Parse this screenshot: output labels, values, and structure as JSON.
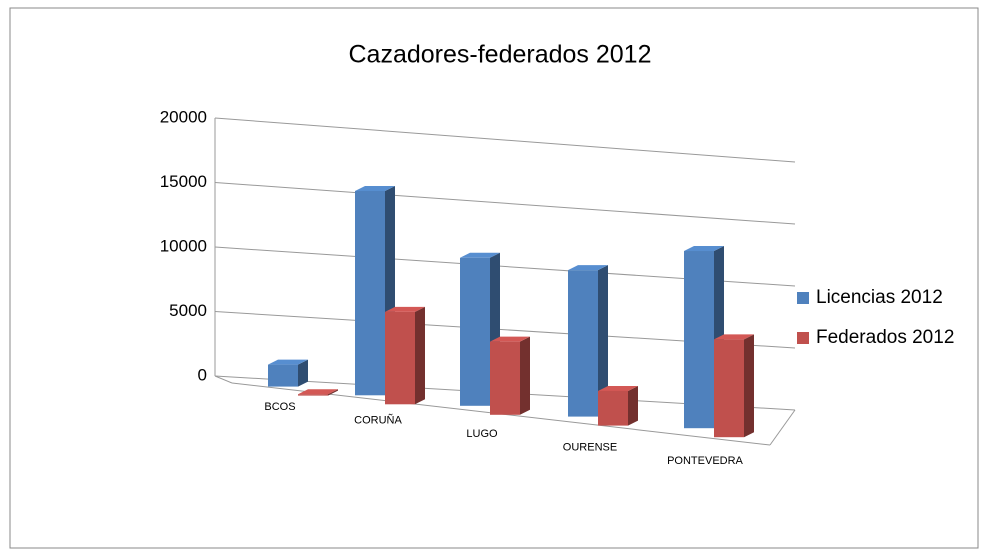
{
  "chart_data": {
    "type": "bar3d",
    "title": "Cazadores-federados 2012",
    "categories": [
      "BCOS",
      "CORUÑA",
      "LUGO",
      "OURENSE",
      "PONTEVEDRA"
    ],
    "series": [
      {
        "name": "Licencias 2012",
        "color": "#4f81bd",
        "values": [
          1600,
          14500,
          10200,
          9800,
          11500
        ]
      },
      {
        "name": "Federados 2012",
        "color": "#c0504d",
        "values": [
          100,
          6500,
          5000,
          2300,
          6300
        ]
      }
    ],
    "ylim": [
      0,
      20000
    ],
    "yticks": [
      0,
      5000,
      10000,
      15000,
      20000
    ],
    "grid": true,
    "legend": "right"
  }
}
